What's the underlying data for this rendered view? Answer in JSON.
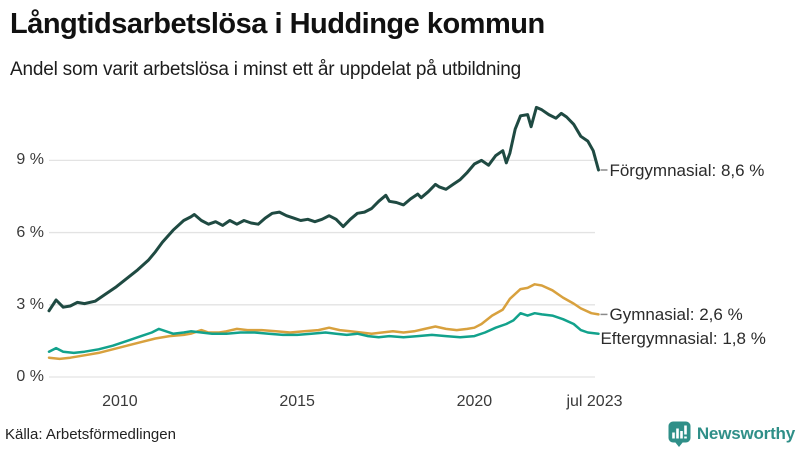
{
  "header": {
    "title": "Långtidsarbetslösa i Huddinge kommun",
    "subtitle": "Andel som varit arbetslösa i minst ett år uppdelat på utbildning"
  },
  "footer": {
    "source": "Källa: Arbetsförmedlingen",
    "brand": "Newsworthy",
    "brand_color": "#2f8f88",
    "brand_icon": "bar-chart-speech-bubble-icon"
  },
  "colors": {
    "forgymnasial": "#1f4a42",
    "gymnasial": "#d8a13e",
    "eftergymnasial": "#12a28c",
    "grid": "#e3e3e3",
    "tick_text": "#3a3a3a",
    "label_text": "#2b2b2b",
    "connector": "#8a8a8a"
  },
  "chart_data": {
    "type": "line",
    "title": "Långtidsarbetslösa i Huddinge kommun",
    "subtitle": "Andel som varit arbetslösa i minst ett år uppdelat på utbildning",
    "xlabel": "",
    "ylabel": "",
    "xlim": [
      2008.0,
      2023.58
    ],
    "ylim": [
      0,
      11.7
    ],
    "grid": "horizontal",
    "legend_position": "right-edge-labels",
    "yticks": [
      {
        "v": 0,
        "label": "0 %"
      },
      {
        "v": 3,
        "label": "3 %"
      },
      {
        "v": 6,
        "label": "6 %"
      },
      {
        "v": 9,
        "label": "9 %"
      }
    ],
    "xticks": [
      {
        "t": 2010.0,
        "label": "2010"
      },
      {
        "t": 2015.0,
        "label": "2015"
      },
      {
        "t": 2020.0,
        "label": "2020"
      },
      {
        "t": 2023.5,
        "label": "jul 2023"
      }
    ],
    "series": [
      {
        "name": "Förgymnasial",
        "key": "forgymnasial",
        "end_label": "Förgymnasial: 8,6 %",
        "end_value_pct": 8.6,
        "color": "#1f4a42",
        "stroke_width": 3,
        "connector_dash": true,
        "label_dy": 0,
        "points": [
          [
            2008.0,
            2.75
          ],
          [
            2008.2,
            3.2
          ],
          [
            2008.4,
            2.9
          ],
          [
            2008.6,
            2.95
          ],
          [
            2008.8,
            3.1
          ],
          [
            2009.0,
            3.05
          ],
          [
            2009.3,
            3.15
          ],
          [
            2009.6,
            3.45
          ],
          [
            2009.9,
            3.75
          ],
          [
            2010.2,
            4.1
          ],
          [
            2010.5,
            4.45
          ],
          [
            2010.8,
            4.85
          ],
          [
            2011.0,
            5.2
          ],
          [
            2011.2,
            5.6
          ],
          [
            2011.5,
            6.1
          ],
          [
            2011.8,
            6.5
          ],
          [
            2012.0,
            6.65
          ],
          [
            2012.1,
            6.75
          ],
          [
            2012.3,
            6.5
          ],
          [
            2012.5,
            6.35
          ],
          [
            2012.7,
            6.45
          ],
          [
            2012.9,
            6.3
          ],
          [
            2013.1,
            6.5
          ],
          [
            2013.3,
            6.35
          ],
          [
            2013.5,
            6.5
          ],
          [
            2013.7,
            6.4
          ],
          [
            2013.9,
            6.35
          ],
          [
            2014.1,
            6.6
          ],
          [
            2014.3,
            6.8
          ],
          [
            2014.5,
            6.85
          ],
          [
            2014.7,
            6.7
          ],
          [
            2014.9,
            6.6
          ],
          [
            2015.1,
            6.5
          ],
          [
            2015.3,
            6.55
          ],
          [
            2015.5,
            6.45
          ],
          [
            2015.7,
            6.55
          ],
          [
            2015.9,
            6.7
          ],
          [
            2016.1,
            6.55
          ],
          [
            2016.3,
            6.25
          ],
          [
            2016.5,
            6.55
          ],
          [
            2016.7,
            6.8
          ],
          [
            2016.9,
            6.85
          ],
          [
            2017.1,
            7.0
          ],
          [
            2017.3,
            7.3
          ],
          [
            2017.5,
            7.55
          ],
          [
            2017.6,
            7.3
          ],
          [
            2017.8,
            7.25
          ],
          [
            2018.0,
            7.15
          ],
          [
            2018.2,
            7.4
          ],
          [
            2018.4,
            7.6
          ],
          [
            2018.5,
            7.45
          ],
          [
            2018.7,
            7.7
          ],
          [
            2018.9,
            8.0
          ],
          [
            2019.0,
            7.9
          ],
          [
            2019.2,
            7.8
          ],
          [
            2019.4,
            8.0
          ],
          [
            2019.6,
            8.2
          ],
          [
            2019.8,
            8.5
          ],
          [
            2020.0,
            8.85
          ],
          [
            2020.2,
            9.0
          ],
          [
            2020.4,
            8.8
          ],
          [
            2020.6,
            9.2
          ],
          [
            2020.8,
            9.4
          ],
          [
            2020.9,
            8.9
          ],
          [
            2021.0,
            9.3
          ],
          [
            2021.15,
            10.3
          ],
          [
            2021.3,
            10.85
          ],
          [
            2021.5,
            10.9
          ],
          [
            2021.6,
            10.4
          ],
          [
            2021.75,
            11.2
          ],
          [
            2021.9,
            11.1
          ],
          [
            2022.1,
            10.9
          ],
          [
            2022.3,
            10.75
          ],
          [
            2022.45,
            10.95
          ],
          [
            2022.6,
            10.8
          ],
          [
            2022.8,
            10.5
          ],
          [
            2023.0,
            10.0
          ],
          [
            2023.2,
            9.8
          ],
          [
            2023.35,
            9.4
          ],
          [
            2023.5,
            8.6
          ]
        ]
      },
      {
        "name": "Gymnasial",
        "key": "gymnasial",
        "end_label": "Gymnasial: 2,6 %",
        "end_value_pct": 2.6,
        "color": "#d8a13e",
        "stroke_width": 2.5,
        "connector_dash": true,
        "label_dy": 0,
        "points": [
          [
            2008.0,
            0.8
          ],
          [
            2008.3,
            0.75
          ],
          [
            2008.6,
            0.8
          ],
          [
            2009.0,
            0.9
          ],
          [
            2009.4,
            1.0
          ],
          [
            2009.8,
            1.15
          ],
          [
            2010.2,
            1.3
          ],
          [
            2010.6,
            1.45
          ],
          [
            2011.0,
            1.6
          ],
          [
            2011.4,
            1.7
          ],
          [
            2011.8,
            1.75
          ],
          [
            2012.0,
            1.8
          ],
          [
            2012.3,
            1.95
          ],
          [
            2012.5,
            1.85
          ],
          [
            2012.8,
            1.85
          ],
          [
            2013.0,
            1.9
          ],
          [
            2013.3,
            2.0
          ],
          [
            2013.6,
            1.95
          ],
          [
            2014.0,
            1.95
          ],
          [
            2014.4,
            1.9
          ],
          [
            2014.8,
            1.85
          ],
          [
            2015.2,
            1.9
          ],
          [
            2015.6,
            1.95
          ],
          [
            2015.9,
            2.05
          ],
          [
            2016.2,
            1.95
          ],
          [
            2016.5,
            1.9
          ],
          [
            2016.8,
            1.85
          ],
          [
            2017.1,
            1.8
          ],
          [
            2017.4,
            1.85
          ],
          [
            2017.7,
            1.9
          ],
          [
            2018.0,
            1.85
          ],
          [
            2018.3,
            1.9
          ],
          [
            2018.6,
            2.0
          ],
          [
            2018.9,
            2.1
          ],
          [
            2019.2,
            2.0
          ],
          [
            2019.5,
            1.95
          ],
          [
            2019.8,
            2.0
          ],
          [
            2020.0,
            2.05
          ],
          [
            2020.2,
            2.2
          ],
          [
            2020.5,
            2.55
          ],
          [
            2020.8,
            2.8
          ],
          [
            2021.0,
            3.25
          ],
          [
            2021.3,
            3.65
          ],
          [
            2021.5,
            3.7
          ],
          [
            2021.7,
            3.85
          ],
          [
            2021.9,
            3.8
          ],
          [
            2022.2,
            3.6
          ],
          [
            2022.5,
            3.3
          ],
          [
            2022.8,
            3.05
          ],
          [
            2023.0,
            2.85
          ],
          [
            2023.3,
            2.65
          ],
          [
            2023.5,
            2.6
          ]
        ]
      },
      {
        "name": "Eftergymnasial",
        "key": "eftergymnasial",
        "end_label": "Eftergymnasial: 1,8 %",
        "end_value_pct": 1.8,
        "color": "#12a28c",
        "stroke_width": 2.5,
        "connector_dash": false,
        "label_dy": 4,
        "points": [
          [
            2008.0,
            1.05
          ],
          [
            2008.2,
            1.2
          ],
          [
            2008.4,
            1.05
          ],
          [
            2008.7,
            1.0
          ],
          [
            2009.0,
            1.05
          ],
          [
            2009.4,
            1.15
          ],
          [
            2009.8,
            1.3
          ],
          [
            2010.2,
            1.5
          ],
          [
            2010.6,
            1.7
          ],
          [
            2010.9,
            1.85
          ],
          [
            2011.1,
            2.0
          ],
          [
            2011.3,
            1.9
          ],
          [
            2011.5,
            1.8
          ],
          [
            2011.8,
            1.85
          ],
          [
            2012.0,
            1.9
          ],
          [
            2012.3,
            1.85
          ],
          [
            2012.6,
            1.8
          ],
          [
            2013.0,
            1.8
          ],
          [
            2013.4,
            1.85
          ],
          [
            2013.8,
            1.85
          ],
          [
            2014.2,
            1.8
          ],
          [
            2014.6,
            1.75
          ],
          [
            2015.0,
            1.75
          ],
          [
            2015.4,
            1.8
          ],
          [
            2015.8,
            1.85
          ],
          [
            2016.1,
            1.8
          ],
          [
            2016.4,
            1.75
          ],
          [
            2016.7,
            1.8
          ],
          [
            2017.0,
            1.7
          ],
          [
            2017.3,
            1.65
          ],
          [
            2017.6,
            1.7
          ],
          [
            2018.0,
            1.65
          ],
          [
            2018.4,
            1.7
          ],
          [
            2018.8,
            1.75
          ],
          [
            2019.2,
            1.7
          ],
          [
            2019.6,
            1.65
          ],
          [
            2020.0,
            1.7
          ],
          [
            2020.3,
            1.85
          ],
          [
            2020.6,
            2.05
          ],
          [
            2020.9,
            2.2
          ],
          [
            2021.1,
            2.35
          ],
          [
            2021.3,
            2.65
          ],
          [
            2021.5,
            2.55
          ],
          [
            2021.7,
            2.65
          ],
          [
            2021.9,
            2.6
          ],
          [
            2022.2,
            2.55
          ],
          [
            2022.5,
            2.4
          ],
          [
            2022.8,
            2.2
          ],
          [
            2023.0,
            1.95
          ],
          [
            2023.2,
            1.85
          ],
          [
            2023.5,
            1.8
          ]
        ]
      }
    ]
  }
}
